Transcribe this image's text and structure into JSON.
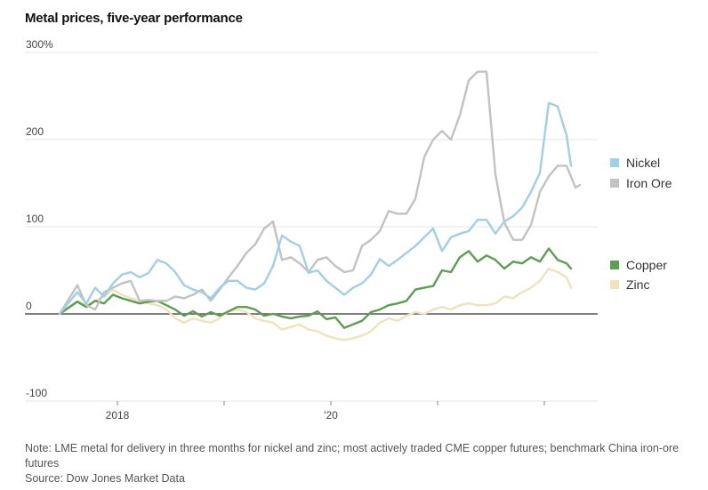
{
  "title": "Metal prices, five-year performance",
  "notes": {
    "line1": "Note: LME metal for delivery in three months for nickel and zinc; most actively traded CME copper futures; benchmark China iron-ore futures",
    "source": "Source: Dow Jones Market Data"
  },
  "chart_data": {
    "type": "line",
    "title": "Metal prices, five-year performance",
    "ylim": [
      -100,
      300
    ],
    "y_ticks": [
      {
        "value": 300,
        "label": "300%"
      },
      {
        "value": 200,
        "label": "200"
      },
      {
        "value": 100,
        "label": "100"
      },
      {
        "value": 0,
        "label": "0"
      },
      {
        "value": -100,
        "label": "-100"
      }
    ],
    "x_range": [
      0,
      60
    ],
    "x_ticks_major": [
      {
        "value": 6.5,
        "label": "2018"
      },
      {
        "value": 30.5,
        "label": "'20"
      }
    ],
    "x_ticks_minor": [
      18.5,
      42.5,
      54.5
    ],
    "grid": true,
    "legend": "right",
    "series": [
      {
        "name": "Nickel",
        "color": "#9fd0e8",
        "values": [
          [
            0,
            0
          ],
          [
            2,
            25
          ],
          [
            3,
            12
          ],
          [
            4,
            30
          ],
          [
            5,
            20
          ],
          [
            6,
            35
          ],
          [
            7,
            45
          ],
          [
            8,
            48
          ],
          [
            9,
            42
          ],
          [
            10,
            47
          ],
          [
            11,
            62
          ],
          [
            12,
            58
          ],
          [
            13,
            48
          ],
          [
            14,
            33
          ],
          [
            15,
            28
          ],
          [
            16,
            25
          ],
          [
            17,
            18
          ],
          [
            18,
            30
          ],
          [
            19,
            38
          ],
          [
            20,
            38
          ],
          [
            21,
            30
          ],
          [
            22,
            28
          ],
          [
            23,
            35
          ],
          [
            24,
            55
          ],
          [
            25,
            90
          ],
          [
            26,
            83
          ],
          [
            27,
            78
          ],
          [
            28,
            47
          ],
          [
            29,
            50
          ],
          [
            30,
            38
          ],
          [
            31,
            30
          ],
          [
            32,
            22
          ],
          [
            33,
            30
          ],
          [
            34,
            35
          ],
          [
            35,
            45
          ],
          [
            36,
            63
          ],
          [
            37,
            55
          ],
          [
            38,
            62
          ],
          [
            39,
            70
          ],
          [
            40,
            78
          ],
          [
            41,
            88
          ],
          [
            42,
            98
          ],
          [
            43,
            72
          ],
          [
            44,
            88
          ],
          [
            45,
            92
          ],
          [
            46,
            95
          ],
          [
            47,
            108
          ],
          [
            48,
            108
          ],
          [
            49,
            92
          ],
          [
            50,
            106
          ],
          [
            51,
            112
          ],
          [
            52,
            122
          ],
          [
            53,
            140
          ],
          [
            54,
            162
          ],
          [
            55,
            242
          ],
          [
            56,
            238
          ],
          [
            57,
            205
          ],
          [
            57.5,
            170
          ]
        ]
      },
      {
        "name": "Iron Ore",
        "color": "#c2c2c2",
        "values": [
          [
            0,
            0
          ],
          [
            2,
            33
          ],
          [
            3,
            10
          ],
          [
            4,
            5
          ],
          [
            5,
            25
          ],
          [
            6,
            30
          ],
          [
            7,
            35
          ],
          [
            8,
            38
          ],
          [
            9,
            15
          ],
          [
            10,
            16
          ],
          [
            11,
            15
          ],
          [
            12,
            15
          ],
          [
            13,
            20
          ],
          [
            14,
            18
          ],
          [
            15,
            22
          ],
          [
            16,
            28
          ],
          [
            17,
            15
          ],
          [
            18,
            28
          ],
          [
            19,
            42
          ],
          [
            20,
            55
          ],
          [
            21,
            70
          ],
          [
            22,
            80
          ],
          [
            23,
            98
          ],
          [
            24,
            106
          ],
          [
            25,
            62
          ],
          [
            26,
            65
          ],
          [
            27,
            58
          ],
          [
            28,
            48
          ],
          [
            29,
            62
          ],
          [
            30,
            65
          ],
          [
            31,
            55
          ],
          [
            32,
            48
          ],
          [
            33,
            50
          ],
          [
            34,
            78
          ],
          [
            35,
            85
          ],
          [
            36,
            95
          ],
          [
            37,
            118
          ],
          [
            38,
            115
          ],
          [
            39,
            115
          ],
          [
            40,
            132
          ],
          [
            41,
            180
          ],
          [
            42,
            200
          ],
          [
            43,
            210
          ],
          [
            44,
            200
          ],
          [
            45,
            228
          ],
          [
            46,
            268
          ],
          [
            47,
            278
          ],
          [
            48,
            278
          ],
          [
            49,
            160
          ],
          [
            50,
            105
          ],
          [
            51,
            85
          ],
          [
            52,
            85
          ],
          [
            53,
            102
          ],
          [
            54,
            140
          ],
          [
            55,
            158
          ],
          [
            56,
            170
          ],
          [
            57,
            170
          ],
          [
            58,
            145
          ],
          [
            58.5,
            148
          ]
        ]
      },
      {
        "name": "Copper",
        "color": "#5aa04f",
        "values": [
          [
            0,
            0
          ],
          [
            2,
            14
          ],
          [
            3,
            8
          ],
          [
            4,
            15
          ],
          [
            5,
            12
          ],
          [
            6,
            22
          ],
          [
            7,
            18
          ],
          [
            8,
            15
          ],
          [
            9,
            12
          ],
          [
            10,
            14
          ],
          [
            11,
            15
          ],
          [
            12,
            10
          ],
          [
            13,
            5
          ],
          [
            14,
            -2
          ],
          [
            15,
            3
          ],
          [
            16,
            -3
          ],
          [
            17,
            2
          ],
          [
            18,
            -2
          ],
          [
            19,
            3
          ],
          [
            20,
            8
          ],
          [
            21,
            8
          ],
          [
            22,
            5
          ],
          [
            23,
            -2
          ],
          [
            24,
            0
          ],
          [
            25,
            -3
          ],
          [
            26,
            -5
          ],
          [
            27,
            -3
          ],
          [
            28,
            -2
          ],
          [
            29,
            3
          ],
          [
            30,
            -6
          ],
          [
            31,
            -4
          ],
          [
            32,
            -16
          ],
          [
            33,
            -12
          ],
          [
            34,
            -8
          ],
          [
            35,
            2
          ],
          [
            36,
            5
          ],
          [
            37,
            10
          ],
          [
            38,
            12
          ],
          [
            39,
            15
          ],
          [
            40,
            28
          ],
          [
            41,
            30
          ],
          [
            42,
            32
          ],
          [
            43,
            50
          ],
          [
            44,
            48
          ],
          [
            45,
            65
          ],
          [
            46,
            72
          ],
          [
            47,
            60
          ],
          [
            48,
            67
          ],
          [
            49,
            62
          ],
          [
            50,
            52
          ],
          [
            51,
            60
          ],
          [
            52,
            58
          ],
          [
            53,
            65
          ],
          [
            54,
            60
          ],
          [
            55,
            75
          ],
          [
            56,
            62
          ],
          [
            57,
            58
          ],
          [
            57.5,
            52
          ]
        ]
      },
      {
        "name": "Zinc",
        "color": "#efe3bc",
        "values": [
          [
            0,
            0
          ],
          [
            2,
            15
          ],
          [
            3,
            10
          ],
          [
            4,
            15
          ],
          [
            5,
            20
          ],
          [
            6,
            28
          ],
          [
            7,
            22
          ],
          [
            8,
            18
          ],
          [
            9,
            15
          ],
          [
            10,
            12
          ],
          [
            11,
            10
          ],
          [
            12,
            5
          ],
          [
            13,
            -5
          ],
          [
            14,
            -10
          ],
          [
            15,
            -5
          ],
          [
            16,
            -8
          ],
          [
            17,
            -10
          ],
          [
            18,
            -5
          ],
          [
            19,
            3
          ],
          [
            20,
            5
          ],
          [
            21,
            2
          ],
          [
            22,
            -5
          ],
          [
            23,
            -8
          ],
          [
            24,
            -10
          ],
          [
            25,
            -18
          ],
          [
            26,
            -15
          ],
          [
            27,
            -12
          ],
          [
            28,
            -18
          ],
          [
            29,
            -20
          ],
          [
            30,
            -25
          ],
          [
            31,
            -28
          ],
          [
            32,
            -30
          ],
          [
            33,
            -28
          ],
          [
            34,
            -25
          ],
          [
            35,
            -20
          ],
          [
            36,
            -10
          ],
          [
            37,
            -5
          ],
          [
            38,
            -8
          ],
          [
            39,
            -2
          ],
          [
            40,
            2
          ],
          [
            41,
            0
          ],
          [
            42,
            5
          ],
          [
            43,
            8
          ],
          [
            44,
            5
          ],
          [
            45,
            10
          ],
          [
            46,
            12
          ],
          [
            47,
            10
          ],
          [
            48,
            10
          ],
          [
            49,
            12
          ],
          [
            50,
            20
          ],
          [
            51,
            18
          ],
          [
            52,
            25
          ],
          [
            53,
            30
          ],
          [
            54,
            38
          ],
          [
            55,
            52
          ],
          [
            56,
            48
          ],
          [
            57,
            42
          ],
          [
            57.5,
            30
          ]
        ]
      }
    ]
  }
}
